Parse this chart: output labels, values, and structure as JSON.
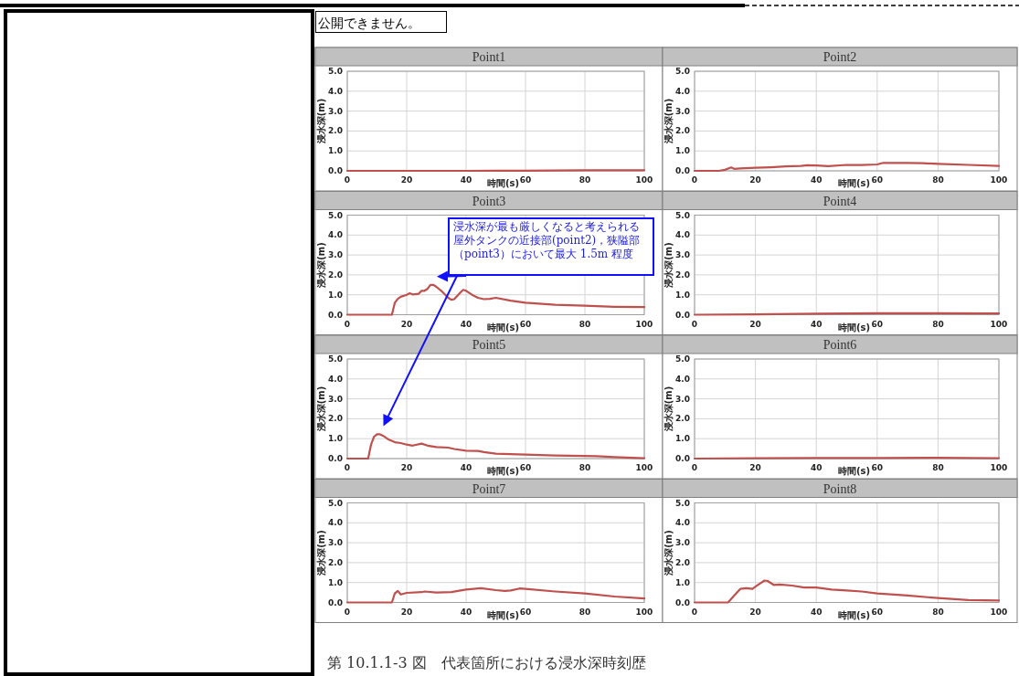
{
  "chart_data": [
    {
      "type": "line",
      "title": "Point1",
      "xlabel": "時間(s)",
      "ylabel": "浸水深(m)",
      "xlim": [
        0,
        100
      ],
      "xticks": [
        0,
        20,
        40,
        60,
        80,
        100
      ],
      "ylim": [
        0,
        5
      ],
      "yticks": [
        {
          "value": 0,
          "label": "0.0"
        },
        {
          "value": 1,
          "label": "1.0"
        },
        {
          "value": 2,
          "label": "2.0"
        },
        {
          "value": 3,
          "label": "3.0"
        },
        {
          "value": 4,
          "label": "4.0"
        },
        {
          "value": 5,
          "label": "5.0"
        }
      ],
      "grid": true,
      "annotations": [
        "公開できません。",
        "第 10.1.1-3 図　代表箇所における浸水深時刻歴"
      ],
      "series": [
        {
          "color": "#c0504d",
          "x": [
            0,
            10,
            20,
            30,
            40,
            50,
            60,
            70,
            80,
            90,
            100
          ],
          "values": [
            0,
            0,
            0,
            0,
            0,
            0.01,
            0.01,
            0.02,
            0.03,
            0.03,
            0.03
          ]
        }
      ]
    },
    {
      "type": "line",
      "title": "Point2",
      "xlabel": "時間(s)",
      "ylabel": "浸水深(m)",
      "xlim": [
        0,
        100
      ],
      "xticks": [
        0,
        20,
        40,
        60,
        80,
        100
      ],
      "ylim": [
        0,
        5
      ],
      "yticks": [
        {
          "value": 0,
          "label": "0.0"
        },
        {
          "value": 1,
          "label": "1.0"
        },
        {
          "value": 2,
          "label": "2.0"
        },
        {
          "value": 3,
          "label": "3.0"
        },
        {
          "value": 4,
          "label": "4.0"
        },
        {
          "value": 5,
          "label": "5.0"
        }
      ],
      "grid": true,
      "series": [
        {
          "color": "#c0504d",
          "x": [
            0,
            8,
            10,
            12,
            13,
            15,
            20,
            25,
            30,
            35,
            37,
            40,
            44,
            50,
            55,
            60,
            62,
            70,
            75,
            80,
            90,
            100
          ],
          "values": [
            0,
            0,
            0.05,
            0.17,
            0.1,
            0.12,
            0.15,
            0.18,
            0.22,
            0.25,
            0.28,
            0.27,
            0.24,
            0.3,
            0.29,
            0.32,
            0.4,
            0.4,
            0.38,
            0.35,
            0.3,
            0.25
          ]
        }
      ]
    },
    {
      "type": "line",
      "title": "Point3",
      "xlabel": "時間(s)",
      "ylabel": "浸水深(m)",
      "xlim": [
        0,
        100
      ],
      "xticks": [
        0,
        20,
        40,
        60,
        80,
        100
      ],
      "ylim": [
        0,
        5
      ],
      "yticks": [
        {
          "value": 0,
          "label": "0.0"
        },
        {
          "value": 1,
          "label": "1.0"
        },
        {
          "value": 2,
          "label": "2.0"
        },
        {
          "value": 3,
          "label": "3.0"
        },
        {
          "value": 4,
          "label": "4.0"
        },
        {
          "value": 5,
          "label": "5.0"
        }
      ],
      "grid": true,
      "annotations": [
        "浸水深が最も厳しくなると考えられる屋外タンクの近接部(point2)，狭隘部（point3）において最大 1.5m 程度"
      ],
      "series": [
        {
          "color": "#c0504d",
          "x": [
            0,
            15,
            16,
            17,
            18,
            20,
            21,
            22,
            24,
            25,
            26,
            27,
            28,
            29,
            30,
            32,
            34,
            35,
            36,
            38,
            39,
            40,
            42,
            44,
            46,
            48,
            50,
            55,
            60,
            70,
            80,
            90,
            100
          ],
          "values": [
            0,
            0,
            0.6,
            0.8,
            0.9,
            1.0,
            1.08,
            1.02,
            1.05,
            1.2,
            1.2,
            1.3,
            1.5,
            1.5,
            1.4,
            1.15,
            0.85,
            0.75,
            0.78,
            1.1,
            1.25,
            1.2,
            1.0,
            0.85,
            0.78,
            0.8,
            0.85,
            0.7,
            0.6,
            0.5,
            0.45,
            0.4,
            0.38
          ]
        }
      ]
    },
    {
      "type": "line",
      "title": "Point4",
      "xlabel": "時間(s)",
      "ylabel": "浸水深(m)",
      "xlim": [
        0,
        100
      ],
      "xticks": [
        0,
        20,
        40,
        60,
        80,
        100
      ],
      "ylim": [
        0,
        5
      ],
      "yticks": [
        {
          "value": 0,
          "label": "0.0"
        },
        {
          "value": 1,
          "label": "1.0"
        },
        {
          "value": 2,
          "label": "2.0"
        },
        {
          "value": 3,
          "label": "3.0"
        },
        {
          "value": 4,
          "label": "4.0"
        },
        {
          "value": 5,
          "label": "5.0"
        }
      ],
      "grid": true,
      "series": [
        {
          "color": "#c0504d",
          "x": [
            0,
            20,
            40,
            60,
            80,
            100
          ],
          "values": [
            0,
            0.02,
            0.05,
            0.08,
            0.08,
            0.06
          ]
        }
      ]
    },
    {
      "type": "line",
      "title": "Point5",
      "xlabel": "時間(s)",
      "ylabel": "浸水深(m)",
      "xlim": [
        0,
        100
      ],
      "xticks": [
        0,
        20,
        40,
        60,
        80,
        100
      ],
      "ylim": [
        0,
        5
      ],
      "yticks": [
        {
          "value": 0,
          "label": "0.0"
        },
        {
          "value": 1,
          "label": "1.0"
        },
        {
          "value": 2,
          "label": "2.0"
        },
        {
          "value": 3,
          "label": "3.0"
        },
        {
          "value": 4,
          "label": "4.0"
        },
        {
          "value": 5,
          "label": "5.0"
        }
      ],
      "grid": true,
      "series": [
        {
          "color": "#c0504d",
          "x": [
            0,
            7,
            8,
            9,
            10,
            11,
            12,
            14,
            16,
            18,
            20,
            22,
            25,
            27,
            30,
            34,
            36,
            40,
            44,
            46,
            50,
            60,
            70,
            80,
            84,
            90,
            100
          ],
          "values": [
            0,
            0,
            0.7,
            1.1,
            1.22,
            1.22,
            1.15,
            0.95,
            0.82,
            0.78,
            0.7,
            0.65,
            0.75,
            0.65,
            0.58,
            0.55,
            0.48,
            0.4,
            0.38,
            0.33,
            0.25,
            0.2,
            0.15,
            0.13,
            0.12,
            0.08,
            0.02
          ]
        }
      ]
    },
    {
      "type": "line",
      "title": "Point6",
      "xlabel": "時間(s)",
      "ylabel": "浸水深(m)",
      "xlim": [
        0,
        100
      ],
      "xticks": [
        0,
        20,
        40,
        60,
        80,
        100
      ],
      "ylim": [
        0,
        5
      ],
      "yticks": [
        {
          "value": 0,
          "label": "0.0"
        },
        {
          "value": 1,
          "label": "1.0"
        },
        {
          "value": 2,
          "label": "2.0"
        },
        {
          "value": 3,
          "label": "3.0"
        },
        {
          "value": 4,
          "label": "4.0"
        },
        {
          "value": 5,
          "label": "5.0"
        }
      ],
      "grid": true,
      "series": [
        {
          "color": "#c0504d",
          "x": [
            0,
            20,
            40,
            60,
            80,
            100
          ],
          "values": [
            0,
            0.02,
            0.03,
            0.03,
            0.04,
            0.02
          ]
        }
      ]
    },
    {
      "type": "line",
      "title": "Point7",
      "xlabel": "時間(s)",
      "ylabel": "浸水深(m)",
      "xlim": [
        0,
        100
      ],
      "xticks": [
        0,
        20,
        40,
        60,
        80,
        100
      ],
      "ylim": [
        0,
        5
      ],
      "yticks": [
        {
          "value": 0,
          "label": "0.0"
        },
        {
          "value": 1,
          "label": "1.0"
        },
        {
          "value": 2,
          "label": "2.0"
        },
        {
          "value": 3,
          "label": "3.0"
        },
        {
          "value": 4,
          "label": "4.0"
        },
        {
          "value": 5,
          "label": "5.0"
        }
      ],
      "grid": true,
      "series": [
        {
          "color": "#c0504d",
          "x": [
            0,
            15,
            16,
            17,
            18,
            20,
            25,
            26,
            30,
            35,
            40,
            45,
            50,
            53,
            55,
            58,
            60,
            70,
            80,
            90,
            100
          ],
          "values": [
            0,
            0,
            0.45,
            0.58,
            0.4,
            0.48,
            0.52,
            0.55,
            0.5,
            0.52,
            0.65,
            0.72,
            0.62,
            0.58,
            0.6,
            0.7,
            0.68,
            0.55,
            0.45,
            0.3,
            0.2
          ]
        }
      ]
    },
    {
      "type": "line",
      "title": "Point8",
      "xlabel": "時間(s)",
      "ylabel": "浸水深(m)",
      "xlim": [
        0,
        100
      ],
      "xticks": [
        0,
        20,
        40,
        60,
        80,
        100
      ],
      "ylim": [
        0,
        5
      ],
      "yticks": [
        {
          "value": 0,
          "label": "0.0"
        },
        {
          "value": 1,
          "label": "1.0"
        },
        {
          "value": 2,
          "label": "2.0"
        },
        {
          "value": 3,
          "label": "3.0"
        },
        {
          "value": 4,
          "label": "4.0"
        },
        {
          "value": 5,
          "label": "5.0"
        }
      ],
      "grid": true,
      "series": [
        {
          "color": "#c0504d",
          "x": [
            0,
            11,
            13,
            15,
            17,
            19,
            21,
            23,
            24,
            26,
            28,
            32,
            36,
            40,
            45,
            50,
            55,
            60,
            70,
            80,
            90,
            100
          ],
          "values": [
            0,
            0,
            0.35,
            0.68,
            0.72,
            0.68,
            0.9,
            1.1,
            1.08,
            0.88,
            0.9,
            0.85,
            0.75,
            0.75,
            0.65,
            0.6,
            0.55,
            0.45,
            0.35,
            0.22,
            0.12,
            0.1
          ]
        }
      ]
    }
  ]
}
